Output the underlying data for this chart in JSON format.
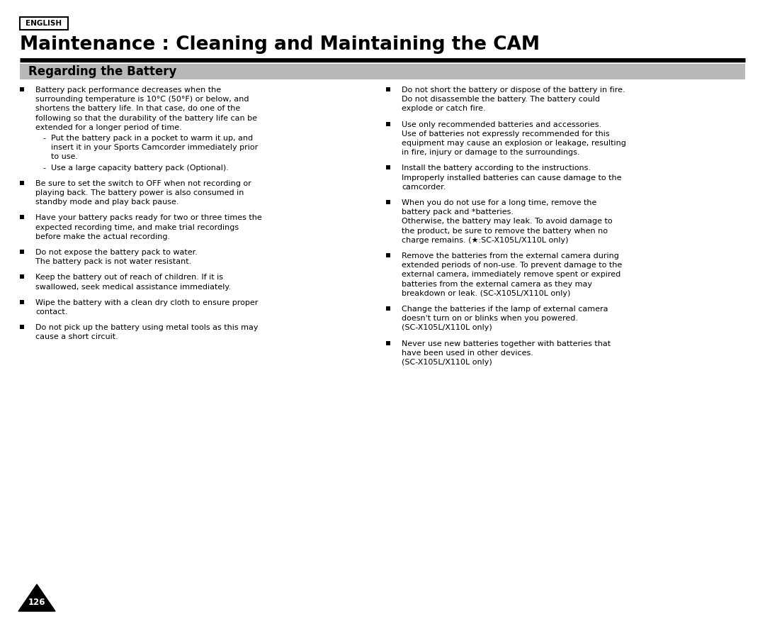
{
  "bg_color": "#ffffff",
  "english_label": "ENGLISH",
  "main_title": "Maintenance : Cleaning and Maintaining the CAM",
  "section_title": "Regarding the Battery",
  "section_bg": "#b8b8b8",
  "left_bullets": [
    {
      "text": "Battery pack performance decreases when the\nsurrounding temperature is 10°C (50°F) or below, and\nshortens the battery life. In that case, do one of the\nfollowing so that the durability of the battery life can be\nextended for a longer period of time.",
      "sub": [
        "Put the battery pack in a pocket to warm it up, and\ninsert it in your Sports Camcorder immediately prior\nto use.",
        "Use a large capacity battery pack (Optional)."
      ]
    },
    {
      "text": "Be sure to set the switch to OFF when not recording or\nplaying back. The battery power is also consumed in\nstandby mode and play back pause.",
      "sub": []
    },
    {
      "text": "Have your battery packs ready for two or three times the\nexpected recording time, and make trial recordings\nbefore make the actual recording.",
      "sub": []
    },
    {
      "text": "Do not expose the battery pack to water.\nThe battery pack is not water resistant.",
      "sub": []
    },
    {
      "text": "Keep the battery out of reach of children. If it is\nswallowed, seek medical assistance immediately.",
      "sub": []
    },
    {
      "text": "Wipe the battery with a clean dry cloth to ensure proper\ncontact.",
      "sub": []
    },
    {
      "text": "Do not pick up the battery using metal tools as this may\ncause a short circuit.",
      "sub": []
    }
  ],
  "right_bullets": [
    {
      "text": "Do not short the battery or dispose of the battery in fire.\nDo not disassemble the battery. The battery could\nexplode or catch fire.",
      "sub": []
    },
    {
      "text": "Use only recommended batteries and accessories.\nUse of batteries not expressly recommended for this\nequipment may cause an explosion or leakage, resulting\nin fire, injury or damage to the surroundings.",
      "sub": []
    },
    {
      "text": "Install the battery according to the instructions.\nImproperly installed batteries can cause damage to the\ncamcorder.",
      "sub": []
    },
    {
      "text": "When you do not use for a long time, remove the\nbattery pack and *batteries.\nOtherwise, the battery may leak. To avoid damage to\nthe product, be sure to remove the battery when no\ncharge remains. (★:SC-X105L/X110L only)",
      "sub": []
    },
    {
      "text": "Remove the batteries from the external camera during\nextended periods of non-use. To prevent damage to the\nexternal camera, immediately remove spent or expired\nbatteries from the external camera as they may\nbreakdown or leak. (SC-X105L/X110L only)",
      "sub": []
    },
    {
      "text": "Change the batteries if the lamp of external camera\ndoesn't turn on or blinks when you powered.\n(SC-X105L/X110L only)",
      "sub": []
    },
    {
      "text": "Never use new batteries together with batteries that\nhave been used in other devices.\n(SC-X105L/X110L only)",
      "sub": []
    }
  ],
  "page_number": "126",
  "fig_width": 10.8,
  "fig_height": 8.8,
  "dpi": 100
}
